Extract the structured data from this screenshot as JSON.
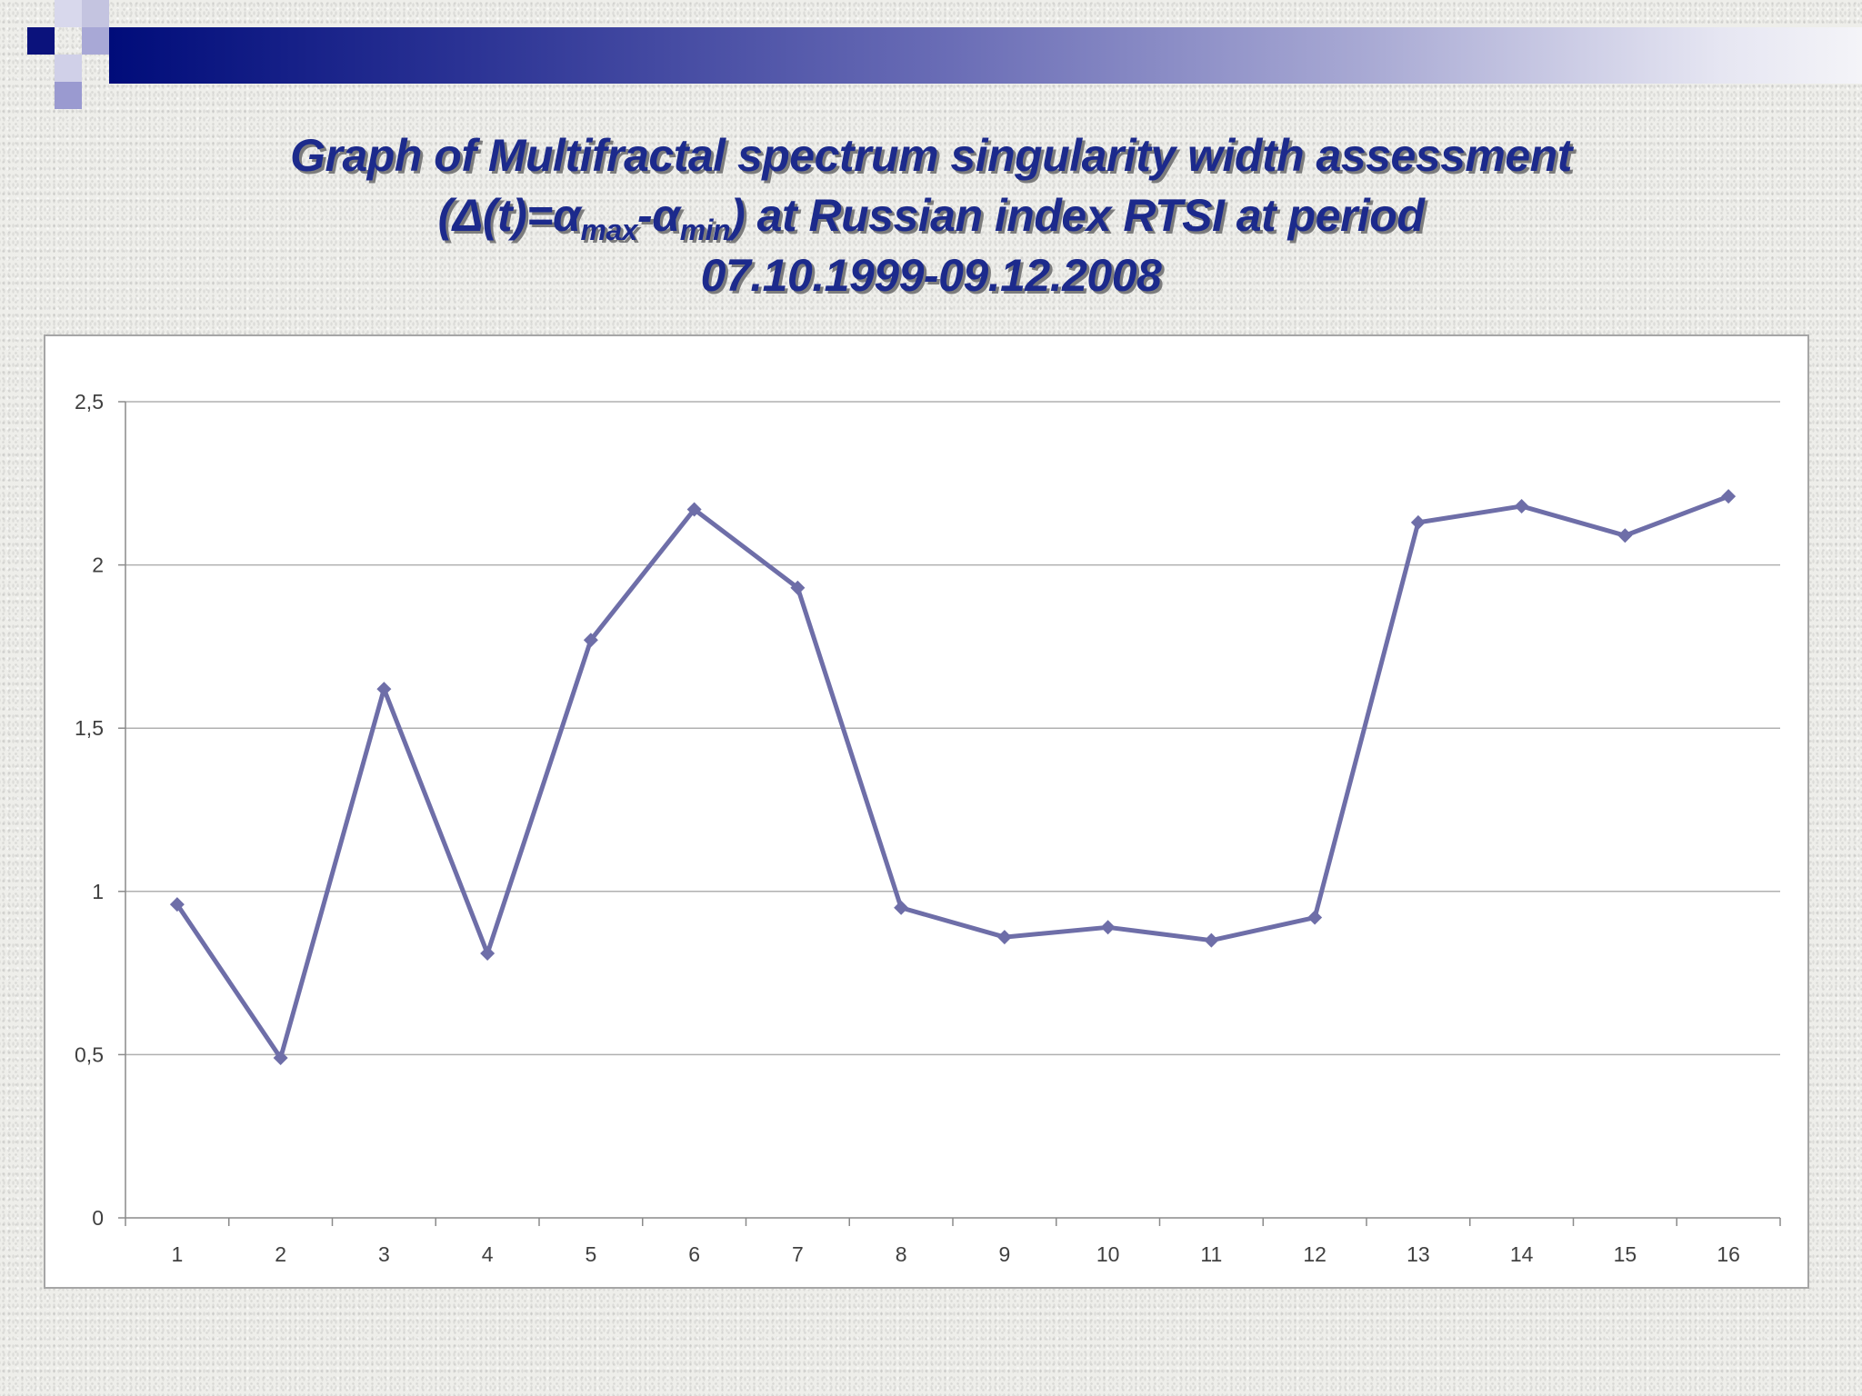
{
  "title": {
    "line1": "Graph of Multifractal spectrum singularity width assessment",
    "line2_pre": "(Δ(t)=α",
    "line2_sub1": "max",
    "line2_mid": "-α",
    "line2_sub2": "min",
    "line2_post": ") at Russian index RTSI at period",
    "line3": "07.10.1999-09.12.2008"
  },
  "colors": {
    "title": "#1c2a8c",
    "series": "#6e6ea8",
    "grid": "#b0b0b0",
    "bar_start": "#000c7a"
  },
  "chart_data": {
    "type": "line",
    "title": "Graph of Multifractal spectrum singularity width assessment (Δ(t)=αmax-αmin) at Russian index RTSI at period 07.10.1999-09.12.2008",
    "xlabel": "",
    "ylabel": "",
    "categories": [
      "1",
      "2",
      "3",
      "4",
      "5",
      "6",
      "7",
      "8",
      "9",
      "10",
      "11",
      "12",
      "13",
      "14",
      "15",
      "16"
    ],
    "series": [
      {
        "values": [
          0.96,
          0.49,
          1.62,
          0.81,
          1.77,
          2.17,
          1.93,
          0.95,
          0.86,
          0.89,
          0.85,
          0.92,
          2.13,
          2.18,
          2.09,
          2.21
        ],
        "marker": "diamond"
      }
    ],
    "ylim": [
      0,
      2.5
    ],
    "yticks": [
      0,
      0.5,
      1,
      1.5,
      2,
      2.5
    ],
    "ytick_labels": [
      "0",
      "0,5",
      "1",
      "1,5",
      "2",
      "2,5"
    ],
    "grid": true,
    "legend": "none"
  }
}
